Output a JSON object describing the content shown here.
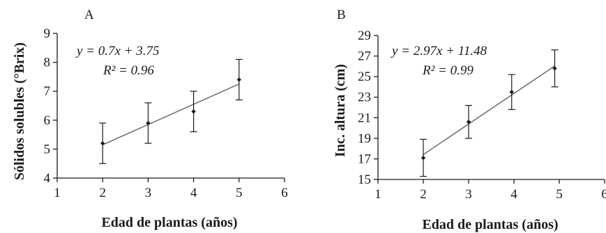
{
  "chart_data": [
    {
      "type": "scatter",
      "panel_label": "A",
      "xlabel": "Edad de plantas (años)",
      "ylabel": "Sólidos solubles (°Brix)",
      "xlim": [
        1,
        6
      ],
      "ylim": [
        4,
        9
      ],
      "xticks": [
        1,
        2,
        3,
        4,
        5,
        6
      ],
      "yticks": [
        4,
        5,
        6,
        7,
        8,
        9
      ],
      "x": [
        2,
        3,
        4,
        5
      ],
      "y": [
        5.2,
        5.9,
        6.3,
        7.4
      ],
      "error": [
        0.7,
        0.7,
        0.7,
        0.7
      ],
      "trendline": {
        "slope": 0.7,
        "intercept": 3.75,
        "x_range": [
          2,
          5
        ]
      },
      "equation": "y = 0.7x + 3.75",
      "r2_label": "R² = 0.96",
      "grid": false
    },
    {
      "type": "scatter",
      "panel_label": "B",
      "xlabel": "Edad de plantas (años)",
      "ylabel": "Inc. altura (cm)",
      "xlim": [
        1,
        6
      ],
      "ylim": [
        15,
        29
      ],
      "xticks": [
        1,
        2,
        3,
        4,
        5,
        6
      ],
      "yticks": [
        15,
        17,
        19,
        21,
        23,
        25,
        27,
        29
      ],
      "x": [
        2,
        3,
        3.95,
        4.9
      ],
      "y": [
        17.1,
        20.6,
        23.5,
        25.8
      ],
      "error": [
        1.8,
        1.6,
        1.7,
        1.8
      ],
      "trendline": {
        "slope": 2.97,
        "intercept": 11.48,
        "x_range": [
          2,
          4.9
        ]
      },
      "equation": "y = 2.97x + 11.48",
      "r2_label": "R² = 0.99",
      "grid": false
    }
  ]
}
